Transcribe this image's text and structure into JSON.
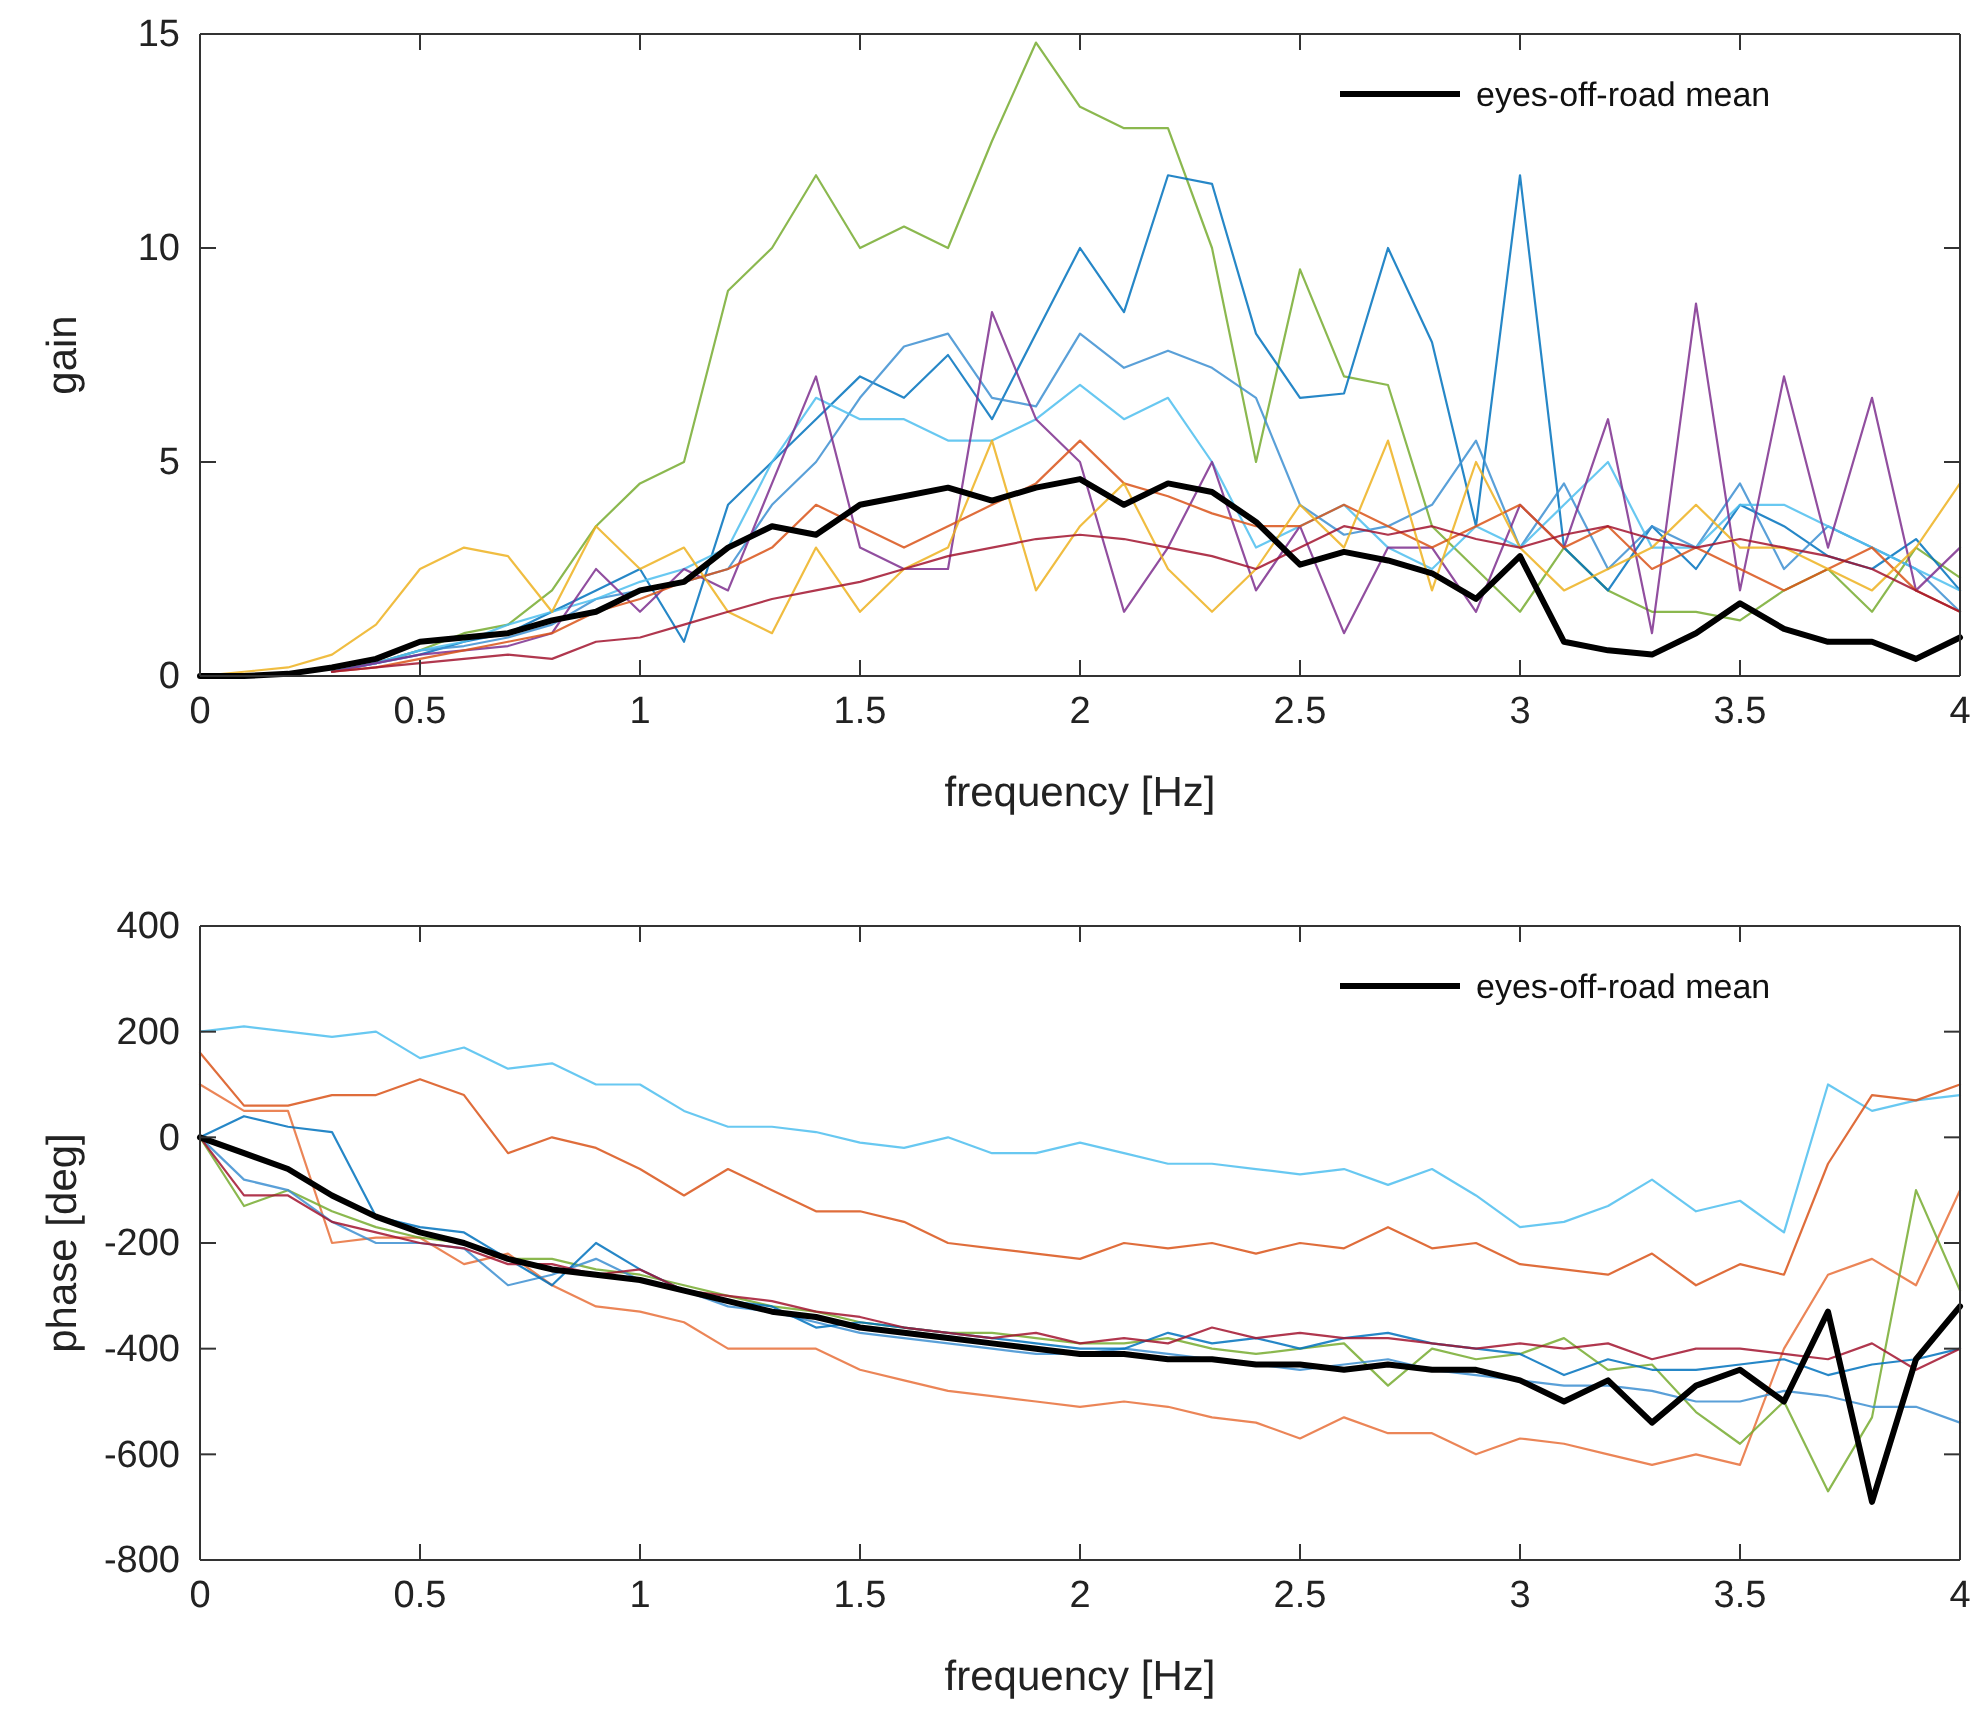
{
  "chart_data": [
    {
      "type": "line",
      "xlabel": "frequency [Hz]",
      "ylabel": "gain",
      "xlim": [
        0,
        4
      ],
      "ylim": [
        0,
        15
      ],
      "xticks": [
        0,
        0.5,
        1,
        1.5,
        2,
        2.5,
        3,
        3.5,
        4
      ],
      "yticks": [
        0,
        5,
        10,
        15
      ],
      "grid": false,
      "legend": "top right",
      "line_style": "solid",
      "x": [
        0,
        0.1,
        0.2,
        0.3,
        0.4,
        0.5,
        0.6,
        0.7,
        0.8,
        0.9,
        1,
        1.1,
        1.2,
        1.3,
        1.4,
        1.5,
        1.6,
        1.7,
        1.8,
        1.9,
        2,
        2.1,
        2.2,
        2.3,
        2.4,
        2.5,
        2.6,
        2.7,
        2.8,
        2.9,
        3,
        3.1,
        3.2,
        3.3,
        3.4,
        3.5,
        3.6,
        3.7,
        3.8,
        3.9,
        4
      ],
      "series": [
        {
          "color": "#77ac30",
          "values": [
            null,
            null,
            null,
            null,
            0.3,
            0.6,
            1,
            1.2,
            2,
            3.5,
            4.5,
            5,
            9,
            10,
            11.7,
            10,
            10.5,
            10,
            12.5,
            14.8,
            13.3,
            12.8,
            12.8,
            10,
            5,
            9.5,
            7,
            6.8,
            3.5,
            2.5,
            1.5,
            3,
            2,
            1.5,
            1.5,
            1.3,
            2,
            2.5,
            1.5,
            3,
            2.3
          ]
        },
        {
          "color": "#0072bd",
          "values": [
            null,
            null,
            null,
            0.1,
            0.3,
            0.5,
            0.8,
            1,
            1.5,
            2,
            2.5,
            0.8,
            4,
            5,
            6,
            7,
            6.5,
            7.5,
            6,
            8,
            10,
            8.5,
            11.7,
            11.5,
            8,
            6.5,
            6.6,
            10,
            7.8,
            3.5,
            11.7,
            3,
            2,
            3.5,
            2.5,
            4,
            3.5,
            2.8,
            2.5,
            3.2,
            2
          ]
        },
        {
          "color": "#3d8fd1",
          "values": [
            null,
            null,
            null,
            0.1,
            0.3,
            0.6,
            0.7,
            0.9,
            1.2,
            1.8,
            2,
            2.2,
            2.5,
            4,
            5,
            6.5,
            7.7,
            8,
            6.5,
            6.3,
            8,
            7.2,
            7.6,
            7.2,
            6.5,
            4,
            3.3,
            3.5,
            4,
            5.5,
            3,
            4.5,
            2.5,
            3.5,
            3,
            4.5,
            2.5,
            3.5,
            3,
            2.5,
            1.5
          ]
        },
        {
          "color": "#4dbeee",
          "values": [
            null,
            null,
            null,
            0.1,
            0.3,
            0.6,
            0.8,
            1.2,
            1.5,
            1.8,
            2.2,
            2.5,
            3,
            5,
            6.5,
            6,
            6,
            5.5,
            5.5,
            6,
            6.8,
            6,
            6.5,
            5,
            3,
            3.5,
            4,
            3,
            2.5,
            3.5,
            3,
            4,
            5,
            3,
            3,
            4,
            4,
            3.5,
            3,
            2.5,
            2
          ]
        },
        {
          "color": "#7e2f8e",
          "values": [
            null,
            null,
            null,
            0.1,
            0.3,
            0.5,
            0.6,
            0.7,
            1,
            2.5,
            1.5,
            2.5,
            2,
            4.5,
            7,
            3,
            2.5,
            2.5,
            8.5,
            6,
            5,
            1.5,
            3,
            5,
            2,
            3.5,
            1,
            3,
            3,
            1.5,
            4,
            3,
            6,
            1,
            8.7,
            2,
            7,
            3,
            6.5,
            2,
            3
          ]
        },
        {
          "color": "#d95319",
          "values": [
            null,
            null,
            null,
            0.1,
            0.2,
            0.4,
            0.6,
            0.8,
            1,
            1.5,
            1.8,
            2.2,
            2.5,
            3,
            4,
            3.5,
            3,
            3.5,
            4,
            4.5,
            5.5,
            4.5,
            4.2,
            3.8,
            3.5,
            3.5,
            4,
            3.5,
            3,
            3.5,
            4,
            3,
            3.5,
            2.5,
            3,
            2.5,
            2,
            2.5,
            3,
            2,
            1.5
          ]
        },
        {
          "color": "#edb120",
          "values": [
            0,
            0.1,
            0.2,
            0.5,
            1.2,
            2.5,
            3,
            2.8,
            1.5,
            3.5,
            2.5,
            3,
            1.5,
            1,
            3,
            1.5,
            2.5,
            3,
            5.5,
            2,
            3.5,
            4.5,
            2.5,
            1.5,
            2.5,
            4,
            3,
            5.5,
            2,
            5,
            3,
            2,
            2.5,
            3,
            4,
            3,
            3,
            2.5,
            2,
            3,
            4.5
          ]
        },
        {
          "color": "#a2142f",
          "values": [
            null,
            null,
            null,
            0.1,
            0.2,
            0.3,
            0.4,
            0.5,
            0.4,
            0.8,
            0.9,
            1.2,
            1.5,
            1.8,
            2,
            2.2,
            2.5,
            2.8,
            3,
            3.2,
            3.3,
            3.2,
            3,
            2.8,
            2.5,
            3,
            3.5,
            3.3,
            3.5,
            3.2,
            3,
            3.3,
            3.5,
            3.2,
            3,
            3.2,
            3,
            2.8,
            2.5,
            2,
            1.5
          ]
        },
        {
          "name": "eyes-off-road mean",
          "color": "#000000",
          "values": [
            0,
            0,
            0.05,
            0.2,
            0.4,
            0.8,
            0.9,
            1,
            1.3,
            1.5,
            2,
            2.2,
            3,
            3.5,
            3.3,
            4,
            4.2,
            4.4,
            4.1,
            4.4,
            4.6,
            4,
            4.5,
            4.3,
            3.6,
            2.6,
            2.9,
            2.7,
            2.4,
            1.8,
            2.8,
            0.8,
            0.6,
            0.5,
            1,
            1.7,
            1.1,
            0.8,
            0.8,
            0.4,
            0.9
          ]
        }
      ]
    },
    {
      "type": "line",
      "xlabel": "frequency [Hz]",
      "ylabel": "phase [deg]",
      "xlim": [
        0,
        4
      ],
      "ylim": [
        -800,
        400
      ],
      "xticks": [
        0,
        0.5,
        1,
        1.5,
        2,
        2.5,
        3,
        3.5,
        4
      ],
      "yticks": [
        -800,
        -600,
        -400,
        -200,
        0,
        200,
        400
      ],
      "grid": false,
      "legend": "top right",
      "line_style": "solid",
      "x": [
        0,
        0.1,
        0.2,
        0.3,
        0.4,
        0.5,
        0.6,
        0.7,
        0.8,
        0.9,
        1,
        1.1,
        1.2,
        1.3,
        1.4,
        1.5,
        1.6,
        1.7,
        1.8,
        1.9,
        2,
        2.1,
        2.2,
        2.3,
        2.4,
        2.5,
        2.6,
        2.7,
        2.8,
        2.9,
        3,
        3.1,
        3.2,
        3.3,
        3.4,
        3.5,
        3.6,
        3.7,
        3.8,
        3.9,
        4
      ],
      "series": [
        {
          "color": "#4dbeee",
          "values": [
            200,
            210,
            200,
            190,
            200,
            150,
            170,
            130,
            140,
            100,
            100,
            50,
            20,
            20,
            10,
            -10,
            -20,
            0,
            -30,
            -30,
            -10,
            -30,
            -50,
            -50,
            -60,
            -70,
            -60,
            -90,
            -60,
            -110,
            -170,
            -160,
            -130,
            -80,
            -140,
            -120,
            -180,
            100,
            50,
            70,
            80
          ]
        },
        {
          "color": "#d95319",
          "values": [
            160,
            60,
            60,
            80,
            80,
            110,
            80,
            -30,
            0,
            -20,
            -60,
            -110,
            -60,
            -100,
            -140,
            -140,
            -160,
            -200,
            -210,
            -220,
            -230,
            -200,
            -210,
            -200,
            -220,
            -200,
            -210,
            -170,
            -210,
            -200,
            -240,
            -250,
            -260,
            -220,
            -280,
            -240,
            -260,
            -50,
            80,
            70,
            100
          ]
        },
        {
          "color": "#e8703a",
          "values": [
            100,
            50,
            50,
            -200,
            -190,
            -190,
            -240,
            -220,
            -280,
            -320,
            -330,
            -350,
            -400,
            -400,
            -400,
            -440,
            -460,
            -480,
            -490,
            -500,
            -510,
            -500,
            -510,
            -530,
            -540,
            -570,
            -530,
            -560,
            -560,
            -600,
            -570,
            -580,
            -600,
            -620,
            -600,
            -620,
            -400,
            -260,
            -230,
            -280,
            -100
          ]
        },
        {
          "color": "#77ac30",
          "values": [
            0,
            -130,
            -100,
            -140,
            -170,
            -190,
            -200,
            -230,
            -230,
            -250,
            -260,
            -280,
            -300,
            -320,
            -330,
            -350,
            -360,
            -370,
            -370,
            -380,
            -390,
            -390,
            -380,
            -400,
            -410,
            -400,
            -390,
            -470,
            -400,
            -420,
            -410,
            -380,
            -440,
            -430,
            -520,
            -580,
            -500,
            -670,
            -530,
            -100,
            -290
          ]
        },
        {
          "color": "#3d8fd1",
          "values": [
            0,
            -80,
            -100,
            -160,
            -200,
            -200,
            -210,
            -280,
            -260,
            -230,
            -270,
            -290,
            -320,
            -330,
            -350,
            -370,
            -380,
            -390,
            -400,
            -410,
            -410,
            -400,
            -410,
            -420,
            -430,
            -440,
            -430,
            -420,
            -440,
            -450,
            -460,
            -470,
            -470,
            -480,
            -500,
            -500,
            -480,
            -490,
            -510,
            -510,
            -540
          ]
        },
        {
          "color": "#0072bd",
          "values": [
            0,
            40,
            20,
            10,
            -150,
            -170,
            -180,
            -230,
            -280,
            -200,
            -250,
            -290,
            -310,
            -320,
            -360,
            -350,
            -360,
            -370,
            -380,
            -390,
            -400,
            -400,
            -370,
            -390,
            -380,
            -400,
            -380,
            -370,
            -390,
            -400,
            -410,
            -450,
            -420,
            -440,
            -440,
            -430,
            -420,
            -450,
            -430,
            -420,
            -400
          ]
        },
        {
          "color": "#a2142f",
          "values": [
            0,
            -110,
            -110,
            -160,
            -180,
            -200,
            -210,
            -240,
            -240,
            -260,
            -250,
            -290,
            -300,
            -310,
            -330,
            -340,
            -360,
            -370,
            -380,
            -370,
            -390,
            -380,
            -390,
            -360,
            -380,
            -370,
            -380,
            -380,
            -390,
            -400,
            -390,
            -400,
            -390,
            -420,
            -400,
            -400,
            -410,
            -420,
            -390,
            -440,
            -400
          ]
        },
        {
          "name": "eyes-off-road mean",
          "color": "#000000",
          "values": [
            0,
            -30,
            -60,
            -110,
            -150,
            -180,
            -200,
            -230,
            -250,
            -260,
            -270,
            -290,
            -310,
            -330,
            -340,
            -360,
            -370,
            -380,
            -390,
            -400,
            -410,
            -410,
            -420,
            -420,
            -430,
            -430,
            -440,
            -430,
            -440,
            -440,
            -460,
            -500,
            -460,
            -540,
            -470,
            -440,
            -500,
            -330,
            -690,
            -420,
            -320
          ]
        }
      ]
    }
  ]
}
